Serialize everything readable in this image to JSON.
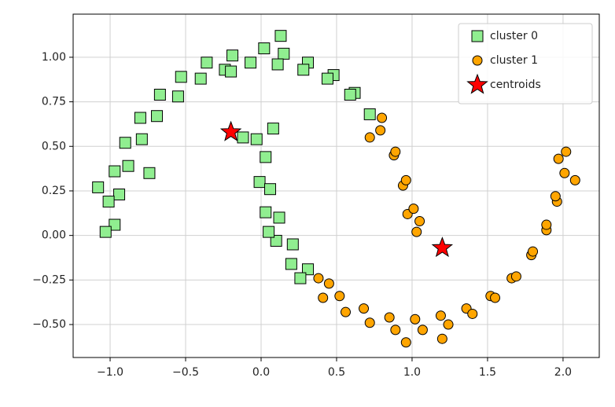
{
  "chart_data": {
    "type": "scatter",
    "xlim": [
      -1.245,
      2.24
    ],
    "ylim": [
      -0.685,
      1.242
    ],
    "xticks": [
      {
        "value": -1.0,
        "label": "−1.0"
      },
      {
        "value": -0.5,
        "label": "−0.5"
      },
      {
        "value": 0.0,
        "label": "0.0"
      },
      {
        "value": 0.5,
        "label": "0.5"
      },
      {
        "value": 1.0,
        "label": "1.0"
      },
      {
        "value": 1.5,
        "label": "1.5"
      },
      {
        "value": 2.0,
        "label": "2.0"
      }
    ],
    "yticks": [
      {
        "value": -0.5,
        "label": "−0.50"
      },
      {
        "value": -0.25,
        "label": "−0.25"
      },
      {
        "value": 0.0,
        "label": "0.00"
      },
      {
        "value": 0.25,
        "label": "0.25"
      },
      {
        "value": 0.5,
        "label": "0.50"
      },
      {
        "value": 0.75,
        "label": "0.75"
      },
      {
        "value": 1.0,
        "label": "1.00"
      }
    ],
    "grid": true,
    "legend": "upper right",
    "series": [
      {
        "name": "cluster 0",
        "color": "#90ee90",
        "marker": "square",
        "x": [
          0.72,
          0.62,
          0.59,
          0.48,
          0.44,
          0.31,
          0.28,
          0.15,
          0.11,
          0.02,
          -0.07,
          -0.19,
          -0.24,
          -0.36,
          -0.4,
          -0.53,
          -0.55,
          -0.67,
          -0.69,
          -0.8,
          -0.79,
          -0.9,
          -0.88,
          -0.97,
          -0.94,
          -1.01,
          -0.97,
          -1.03,
          -1.08,
          -0.74,
          0.13,
          -0.2,
          -0.03,
          0.03,
          -0.01,
          0.06,
          0.03,
          0.12,
          0.1,
          0.21,
          0.2,
          0.31,
          -0.12,
          0.08,
          0.05,
          0.26
        ],
        "y": [
          0.68,
          0.8,
          0.79,
          0.9,
          0.88,
          0.97,
          0.93,
          1.02,
          0.96,
          1.05,
          0.97,
          1.01,
          0.93,
          0.97,
          0.88,
          0.89,
          0.78,
          0.79,
          0.67,
          0.66,
          0.54,
          0.52,
          0.39,
          0.36,
          0.23,
          0.19,
          0.06,
          0.02,
          0.27,
          0.35,
          1.12,
          0.92,
          0.54,
          0.44,
          0.3,
          0.26,
          0.13,
          0.1,
          -0.03,
          -0.05,
          -0.16,
          -0.19,
          0.55,
          0.6,
          0.02,
          -0.24
        ]
      },
      {
        "name": "cluster 1",
        "color": "#ffa500",
        "marker": "circle",
        "x": [
          1.03,
          0.97,
          1.01,
          0.94,
          0.96,
          0.88,
          0.89,
          0.79,
          0.8,
          0.72,
          1.05,
          0.38,
          0.41,
          0.52,
          0.56,
          0.68,
          0.72,
          0.85,
          0.89,
          1.02,
          1.07,
          1.19,
          1.24,
          1.36,
          1.4,
          1.52,
          1.55,
          1.66,
          1.69,
          1.79,
          1.8,
          1.89,
          1.89,
          1.96,
          1.95,
          2.01,
          1.97,
          2.02,
          0.96,
          1.2,
          2.08,
          0.45
        ],
        "y": [
          0.02,
          0.12,
          0.15,
          0.28,
          0.31,
          0.45,
          0.47,
          0.59,
          0.66,
          0.55,
          0.08,
          -0.24,
          -0.35,
          -0.34,
          -0.43,
          -0.41,
          -0.49,
          -0.46,
          -0.53,
          -0.47,
          -0.53,
          -0.45,
          -0.5,
          -0.41,
          -0.44,
          -0.34,
          -0.35,
          -0.24,
          -0.23,
          -0.11,
          -0.09,
          0.03,
          0.06,
          0.19,
          0.22,
          0.35,
          0.43,
          0.47,
          -0.6,
          -0.58,
          0.31,
          -0.27
        ]
      },
      {
        "name": "centroids",
        "color": "#ff0000",
        "marker": "star",
        "x": [
          -0.2,
          1.2
        ],
        "y": [
          0.58,
          -0.07
        ]
      }
    ]
  }
}
